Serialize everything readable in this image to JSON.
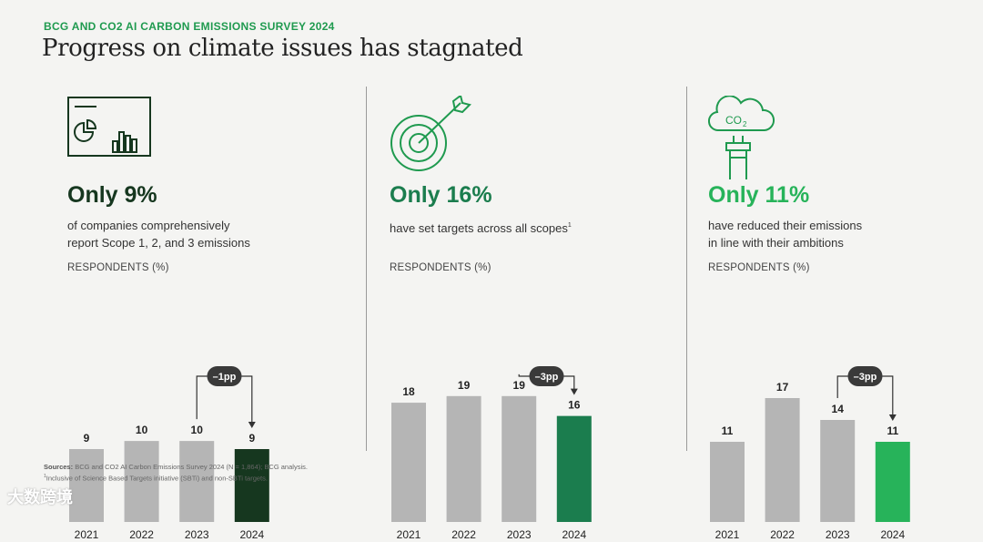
{
  "header": {
    "kicker": "BCG AND CO2 AI CARBON EMISSIONS SURVEY 2024",
    "title": "Progress on climate issues has stagnated"
  },
  "panels": [
    {
      "stat": "Only 9%",
      "desc_line1": "of companies comprehensively",
      "desc_line2": "report Scope 1, 2, and 3 emissions",
      "footnote_mark": "",
      "respondents_label": "RESPONDENTS (%)",
      "change_label": "–1pp",
      "accent": "#16371f",
      "icon": "dashboard-report-icon"
    },
    {
      "stat": "Only 16%",
      "desc_line1": "have set targets across all scopes",
      "desc_line2": "",
      "footnote_mark": "1",
      "respondents_label": "RESPONDENTS (%)",
      "change_label": "–3pp",
      "accent": "#1b7d4e",
      "icon": "target-arrow-icon"
    },
    {
      "stat": "Only 11%",
      "desc_line1": "have reduced their emissions",
      "desc_line2": "in line with their ambitions",
      "footnote_mark": "",
      "respondents_label": "RESPONDENTS (%)",
      "change_label": "–3pp",
      "accent": "#27b35a",
      "icon": "co2-cloud-chimney-icon"
    }
  ],
  "chart_data": [
    {
      "type": "bar",
      "title": "RESPONDENTS (%)",
      "categories": [
        "2021",
        "2022",
        "2023",
        "2024"
      ],
      "values": [
        9,
        10,
        10,
        9
      ],
      "ylim": [
        0,
        18
      ],
      "annotation": "–1pp"
    },
    {
      "type": "bar",
      "title": "RESPONDENTS (%)",
      "categories": [
        "2021",
        "2022",
        "2023",
        "2024"
      ],
      "values": [
        18,
        19,
        19,
        16
      ],
      "ylim": [
        0,
        22
      ],
      "annotation": "–3pp"
    },
    {
      "type": "bar",
      "title": "RESPONDENTS (%)",
      "categories": [
        "2021",
        "2022",
        "2023",
        "2024"
      ],
      "values": [
        11,
        17,
        14,
        11
      ],
      "ylim": [
        0,
        20
      ],
      "annotation": "–3pp"
    }
  ],
  "colors": {
    "bar_gray": "#b5b5b5",
    "kicker_green": "#1f9a4f",
    "icon_green": "#1f9a4f"
  },
  "sources": {
    "label": "Sources:",
    "text": "BCG and CO2 AI Carbon Emissions Survey 2024 (N = 1,864); BCG analysis.",
    "footnote_mark": "1",
    "footnote": "Inclusive of Science Based Targets initiative (SBTi) and non-SBTi targets."
  },
  "watermark": "大数跨境"
}
